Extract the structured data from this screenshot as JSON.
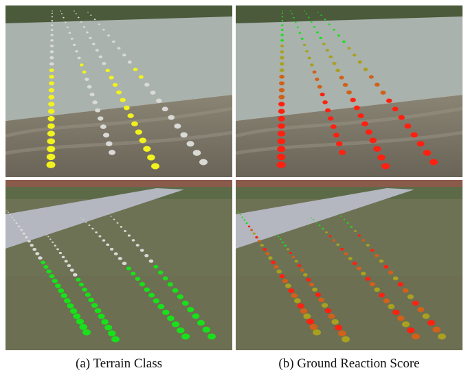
{
  "captions": {
    "a": "(a) Terrain Class",
    "b": "(b) Ground Reaction Score"
  },
  "palette": {
    "sand_class": "#f2f21e",
    "gravel_class": "#d9d9d6",
    "grass_class": "#18e01a",
    "score_high": "#ff2010",
    "score_mid": "#d0601a",
    "score_low": "#a8a020"
  }
}
